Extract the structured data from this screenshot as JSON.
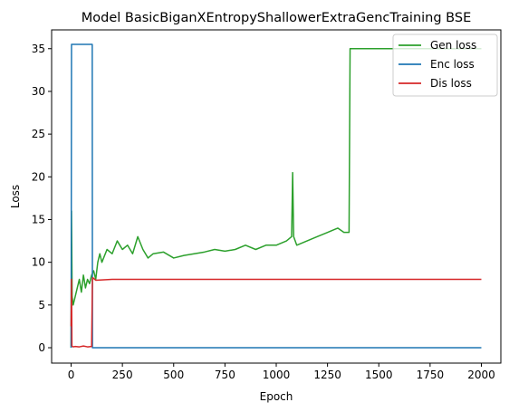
{
  "chart_data": {
    "type": "line",
    "title": "Model BasicBiganXEntropyShallowerExtraGencTraining BSE",
    "xlabel": "Epoch",
    "ylabel": "Loss",
    "xlim": [
      -95,
      2095
    ],
    "ylim": [
      -1.8,
      37.2
    ],
    "xticks": [
      0,
      250,
      500,
      750,
      1000,
      1250,
      1500,
      1750,
      2000
    ],
    "yticks": [
      0,
      5,
      10,
      15,
      20,
      25,
      30,
      35
    ],
    "grid": false,
    "legend_position": "top-right",
    "series": [
      {
        "name": "Gen loss",
        "color": "#2ca02c",
        "x": [
          0,
          2,
          5,
          10,
          20,
          30,
          40,
          50,
          60,
          70,
          80,
          90,
          100,
          110,
          120,
          130,
          140,
          150,
          175,
          200,
          225,
          250,
          275,
          300,
          325,
          350,
          375,
          400,
          450,
          500,
          550,
          600,
          650,
          700,
          750,
          800,
          850,
          900,
          950,
          1000,
          1050,
          1075,
          1080,
          1085,
          1100,
          1150,
          1200,
          1250,
          1300,
          1330,
          1355,
          1360,
          1365,
          1400,
          1500,
          1600,
          1700,
          1800,
          1900,
          2000
        ],
        "y": [
          0,
          16,
          6,
          5,
          6,
          7,
          8,
          6.5,
          8.5,
          7,
          8,
          7.5,
          8.5,
          9,
          8,
          10,
          11,
          10,
          11.5,
          11,
          12.5,
          11.5,
          12,
          11,
          13,
          11.5,
          10.5,
          11,
          11.2,
          10.5,
          10.8,
          11,
          11.2,
          11.5,
          11.3,
          11.5,
          12,
          11.5,
          12,
          12,
          12.5,
          13,
          20.5,
          13,
          12,
          12.5,
          13,
          13.5,
          14,
          13.5,
          13.5,
          35,
          35,
          35,
          35,
          35,
          35,
          35,
          35,
          35
        ]
      },
      {
        "name": "Enc loss",
        "color": "#1f77b4",
        "x": [
          0,
          2,
          103,
          104,
          2000
        ],
        "y": [
          0,
          35.5,
          35.5,
          0,
          0
        ]
      },
      {
        "name": "Dis loss",
        "color": "#d62728",
        "x": [
          0,
          2,
          4,
          10,
          20,
          40,
          60,
          80,
          100,
          104,
          106,
          120,
          200,
          400,
          1000,
          1500,
          2000
        ],
        "y": [
          2.5,
          8,
          0.2,
          0.1,
          0.15,
          0.1,
          0.2,
          0.1,
          0.15,
          8,
          8.2,
          7.9,
          8,
          8,
          8,
          8,
          8
        ]
      }
    ]
  }
}
